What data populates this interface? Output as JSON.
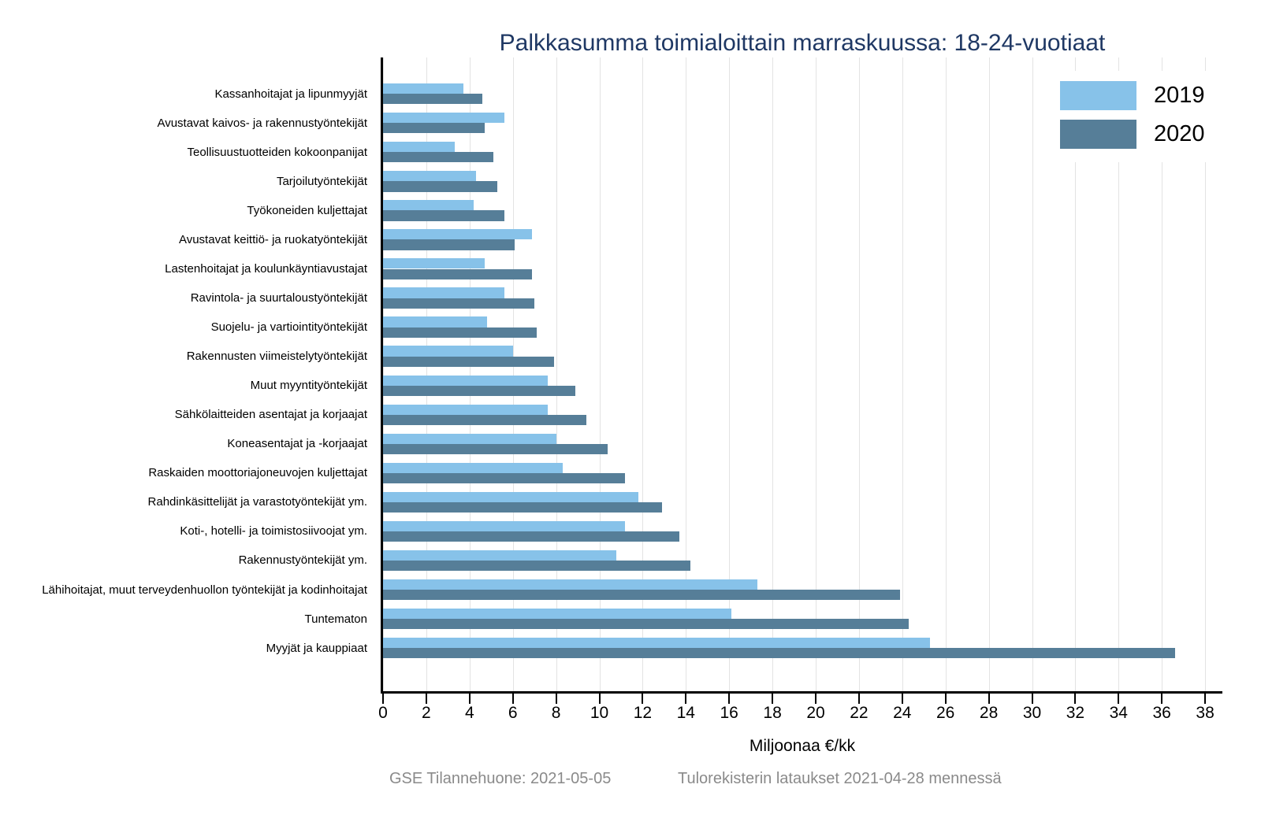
{
  "title": "Palkkasumma toimialoittain marraskuussa: 18-24-vuotiaat",
  "footer": {
    "source": "GSE Tilannehuone: 2021-05-05",
    "note": "Tulorekisterin lataukset 2021-04-28 mennessä"
  },
  "colors": {
    "title": "#1F3864",
    "series_2019": "#87C2E9",
    "series_2020": "#567E98",
    "gridline": "#E3E3E3",
    "axis": "#000000",
    "footer_text": "#8A8A8A"
  },
  "legend": {
    "items": [
      {
        "label": "2019",
        "color": "#87C2E9"
      },
      {
        "label": "2020",
        "color": "#567E98"
      }
    ]
  },
  "chart_data": {
    "type": "bar",
    "orientation": "horizontal",
    "title": "Palkkasumma toimialoittain marraskuussa: 18-24-vuotiaat",
    "xlabel": "Miljoonaa €/kk",
    "xlim": [
      0,
      38.8
    ],
    "xticks": [
      0,
      2,
      4,
      6,
      8,
      10,
      12,
      14,
      16,
      18,
      20,
      22,
      24,
      26,
      28,
      30,
      32,
      34,
      36,
      38
    ],
    "grid": true,
    "legend_position": "top-right",
    "categories": [
      "Kassanhoitajat ja lipunmyyjät",
      "Avustavat kaivos- ja rakennustyöntekijät",
      "Teollisuustuotteiden kokoonpanijat",
      "Tarjoilutyöntekijät",
      "Työkoneiden kuljettajat",
      "Avustavat keittiö- ja ruokatyöntekijät",
      "Lastenhoitajat ja koulunkäyntiavustajat",
      "Ravintola- ja suurtaloustyöntekijät",
      "Suojelu- ja vartiointityöntekijät",
      "Rakennusten viimeistelytyöntekijät",
      "Muut myyntityöntekijät",
      "Sähkölaitteiden asentajat ja korjaajat",
      "Koneasentajat ja -korjaajat",
      "Raskaiden moottoriajoneuvojen kuljettajat",
      "Rahdinkäsittelijät ja varastotyöntekijät ym.",
      "Koti-, hotelli- ja toimistosiivoojat ym.",
      "Rakennustyöntekijät ym.",
      "Lähihoitajat, muut terveydenhuollon työntekijät ja kodinhoitajat",
      "Tuntematon",
      "Myyjät ja kauppiaat"
    ],
    "series": [
      {
        "name": "2019",
        "color": "#87C2E9",
        "values": [
          3.7,
          5.6,
          3.3,
          4.3,
          4.2,
          6.9,
          4.7,
          5.6,
          4.8,
          6.0,
          7.6,
          7.6,
          8.0,
          8.3,
          11.8,
          11.2,
          10.8,
          17.3,
          16.1,
          25.3
        ]
      },
      {
        "name": "2020",
        "color": "#567E98",
        "values": [
          4.6,
          4.7,
          5.1,
          5.3,
          5.6,
          6.1,
          6.9,
          7.0,
          7.1,
          7.9,
          8.9,
          9.4,
          10.4,
          11.2,
          12.9,
          13.7,
          14.2,
          23.9,
          24.3,
          36.6
        ]
      }
    ]
  }
}
